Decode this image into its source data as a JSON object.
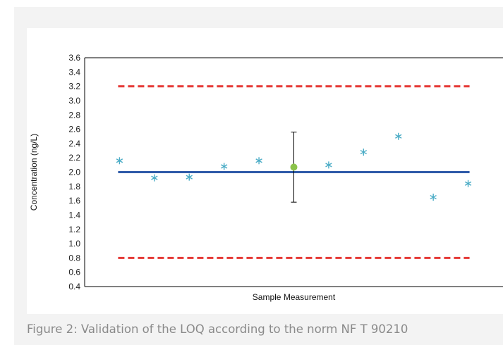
{
  "figure": {
    "caption": "Figure 2: Validation of the LOQ according to the norm NF T 90210"
  },
  "chart_data": {
    "type": "scatter",
    "xlabel": "Sample Measurement",
    "ylabel": "Concentration (ng/L)",
    "ylim": [
      0.4,
      3.6
    ],
    "yticks": [
      "0.4",
      "0.6",
      "0.8",
      "1.0",
      "1.2",
      "1.4",
      "1.6",
      "1.8",
      "2.0",
      "2.2",
      "2.4",
      "2.6",
      "2.8",
      "3.0",
      "3.2",
      "3.4",
      "3.6"
    ],
    "grid": false,
    "legend": "none",
    "series": [
      {
        "marker": "asterisk",
        "color": "#4bacc6",
        "x": [
          1,
          2,
          3,
          4,
          5,
          7,
          8,
          9,
          10,
          11
        ],
        "y": [
          2.16,
          1.92,
          1.93,
          2.08,
          2.16,
          2.1,
          2.28,
          2.5,
          1.65,
          1.84
        ]
      },
      {
        "marker": "circle",
        "color": "#8bc34a",
        "x": [
          6
        ],
        "y": [
          2.07
        ],
        "error": [
          0.49
        ]
      }
    ],
    "reference_lines": [
      {
        "y": 2.0,
        "style": "solid",
        "color": "#2e5aa8"
      },
      {
        "y": 3.2,
        "style": "dashed",
        "color": "#e53935"
      },
      {
        "y": 0.8,
        "style": "dashed",
        "color": "#e53935"
      }
    ],
    "x_range": [
      0,
      12
    ]
  }
}
